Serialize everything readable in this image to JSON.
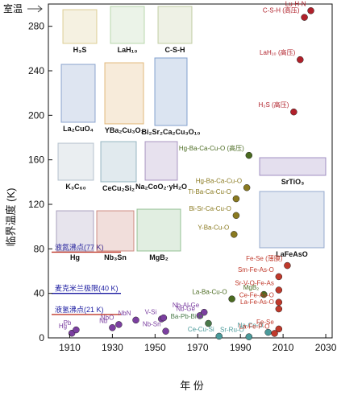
{
  "chart_data": {
    "type": "scatter",
    "xlabel": "年 份",
    "ylabel": "临界温度 (K)",
    "xlim": [
      1900,
      2033
    ],
    "ylim": [
      0,
      300
    ],
    "xticks": [
      1910,
      1930,
      1950,
      1970,
      1990,
      2010,
      2030
    ],
    "yticks": [
      0,
      40,
      80,
      120,
      160,
      200,
      240,
      280
    ],
    "room_temp_label": "室温",
    "room_temp_value": 298,
    "reference_lines": [
      {
        "label": "液氮沸点(77 K)",
        "value": 77,
        "color": "#c0392b"
      },
      {
        "label": "麦克米兰极限(40 K)",
        "value": 40,
        "color": "#1a1aa0"
      },
      {
        "label": "液氢沸点(21 K)",
        "value": 21,
        "color": "#c0392b"
      }
    ],
    "points": [
      {
        "x": 1911,
        "y": 4.2,
        "label": "Hg",
        "color": "#7b3fa0"
      },
      {
        "x": 1913,
        "y": 7.2,
        "label": "Pb",
        "color": "#7b3fa0"
      },
      {
        "x": 1930,
        "y": 9.2,
        "label": "Nb",
        "color": "#7b3fa0"
      },
      {
        "x": 1933,
        "y": 12,
        "label": "NbO",
        "color": "#7b3fa0"
      },
      {
        "x": 1941,
        "y": 16,
        "label": "NbN",
        "color": "#7b3fa0"
      },
      {
        "x": 1953,
        "y": 17,
        "label": "V-Si",
        "color": "#7b3fa0"
      },
      {
        "x": 1954,
        "y": 18,
        "label": "",
        "color": "#7b3fa0"
      },
      {
        "x": 1955,
        "y": 6,
        "label": "Nb-Sn",
        "color": "#7b3fa0"
      },
      {
        "x": 1971,
        "y": 20,
        "label": "Nb-Ge",
        "color": "#7b3fa0"
      },
      {
        "x": 1973,
        "y": 23,
        "label": "Nb-Al-Ge",
        "color": "#7b3fa0"
      },
      {
        "x": 1975,
        "y": 13,
        "label": "Ba-Pb-Bi-O",
        "color": "#4a7a4a"
      },
      {
        "x": 1980,
        "y": 1.5,
        "label": "Ce-Cu-Si",
        "color": "#4a9a9a"
      },
      {
        "x": 1986,
        "y": 35,
        "label": "La-Ba-Cu-O",
        "color": "#4a6a20"
      },
      {
        "x": 1987,
        "y": 93,
        "label": "Y-Ba-Cu-O",
        "color": "#8a7a20"
      },
      {
        "x": 1988,
        "y": 110,
        "label": "Bi-Sr-Ca-Cu-O",
        "color": "#8a7a20"
      },
      {
        "x": 1988,
        "y": 125,
        "label": "Tl-Ba-Ca-Cu-O",
        "color": "#8a7a20"
      },
      {
        "x": 1993,
        "y": 135,
        "label": "Hg-Ba-Ca-Cu-O",
        "color": "#8a7a20"
      },
      {
        "x": 1994,
        "y": 164,
        "label": "Hg-Ba-Ca-Cu-O (高压)",
        "color": "#4a6a20"
      },
      {
        "x": 1994,
        "y": 1,
        "label": "Sr-Ru-O",
        "color": "#4a9a9a"
      },
      {
        "x": 2001,
        "y": 39,
        "label": "MgB₂",
        "color": "#4a6a20"
      },
      {
        "x": 2003,
        "y": 5,
        "label": "Na-Co-O",
        "color": "#4a9a9a"
      },
      {
        "x": 2006,
        "y": 4,
        "label": "La-Fe-P-O",
        "color": "#c0392b"
      },
      {
        "x": 2008,
        "y": 26,
        "label": "La-Fe-As-O",
        "color": "#c0392b"
      },
      {
        "x": 2008,
        "y": 32,
        "label": "Ce-Fe-As-O",
        "color": "#c0392b"
      },
      {
        "x": 2008,
        "y": 43,
        "label": "Sr-V-O-Fe-As",
        "color": "#c0392b"
      },
      {
        "x": 2008,
        "y": 55,
        "label": "Sm-Fe-As-O",
        "color": "#c0392b"
      },
      {
        "x": 2012,
        "y": 65,
        "label": "Fe-Se (薄膜)",
        "color": "#c0392b"
      },
      {
        "x": 2008,
        "y": 8,
        "label": "Fe-Se",
        "color": "#c0392b"
      },
      {
        "x": 2015,
        "y": 203,
        "label": "H₃S (高压)",
        "color": "#b0202a"
      },
      {
        "x": 2018,
        "y": 250,
        "label": "LaH₁₀ (高压)",
        "color": "#b0202a"
      },
      {
        "x": 2020,
        "y": 288,
        "label": "C-S-H (高压)",
        "color": "#b0202a"
      },
      {
        "x": 2023,
        "y": 294,
        "label": "Lu-H-N",
        "color": "#b0202a"
      }
    ],
    "structure_labels": [
      "H₃S",
      "LaH₁₀",
      "C-S-H",
      "La₂CuO₄",
      "YBa₂Cu₃O₇",
      "Bi₂Sr₂Ca₂Cu₃O₁₀",
      "K₃C₆₀",
      "CeCu₂Si₂",
      "Na₂CoO₂·yH₂O",
      "Hg",
      "Nb₃Sn",
      "MgB₂",
      "SrTiO₃",
      "LaFeAsO"
    ]
  }
}
